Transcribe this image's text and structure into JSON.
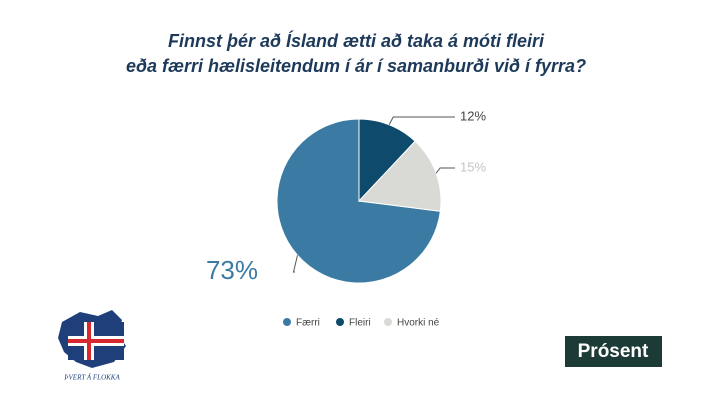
{
  "chart_data": {
    "type": "pie",
    "title": [
      "Finnst þér að Ísland ætti að taka á móti fleiri",
      "eða færri hælisleitendum í ár í samanburði við í fyrra?"
    ],
    "categories": [
      "Færri",
      "Fleiri",
      "Hvorki né"
    ],
    "values": [
      73,
      12,
      15
    ],
    "value_labels": [
      "73%",
      "12%",
      "15%"
    ],
    "colors": [
      "#3b7ba3",
      "#0e4a6b",
      "#d9d9d5"
    ],
    "legend": "bottom",
    "annotations": [
      "ÞVERT Á FLOKKA",
      "Prósent"
    ]
  }
}
